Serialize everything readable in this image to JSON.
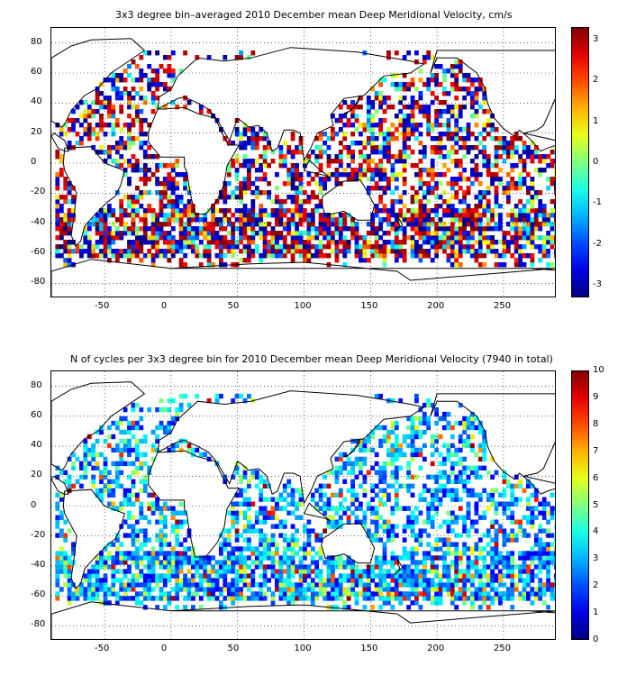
{
  "panels": [
    {
      "title": "3x3 degree bin–averaged 2010 December mean Deep Meridional Velocity, cm/s",
      "colorbar": {
        "min": -3.3,
        "max": 3.3,
        "ticks": [
          "3",
          "2",
          "1",
          "0",
          "-1",
          "-2",
          "-3"
        ],
        "colormap": "jet"
      }
    },
    {
      "title": "N of cycles per 3x3 degree bin for 2010 December mean Deep Meridional Velocity (7940 in total)",
      "colorbar": {
        "min": 0,
        "max": 10,
        "ticks": [
          "10",
          "9",
          "8",
          "7",
          "6",
          "5",
          "4",
          "3",
          "2",
          "1",
          "0"
        ],
        "colormap": "jet"
      }
    }
  ],
  "map_axes": {
    "x_ticks": [
      "-50",
      "0",
      "50",
      "100",
      "150",
      "200",
      "250"
    ],
    "y_ticks": [
      "80",
      "60",
      "40",
      "20",
      "0",
      "-20",
      "-40",
      "-60",
      "-80"
    ],
    "grid": "dotted"
  },
  "colors": {
    "land_outline": "#000000",
    "background": "#ffffff"
  }
}
